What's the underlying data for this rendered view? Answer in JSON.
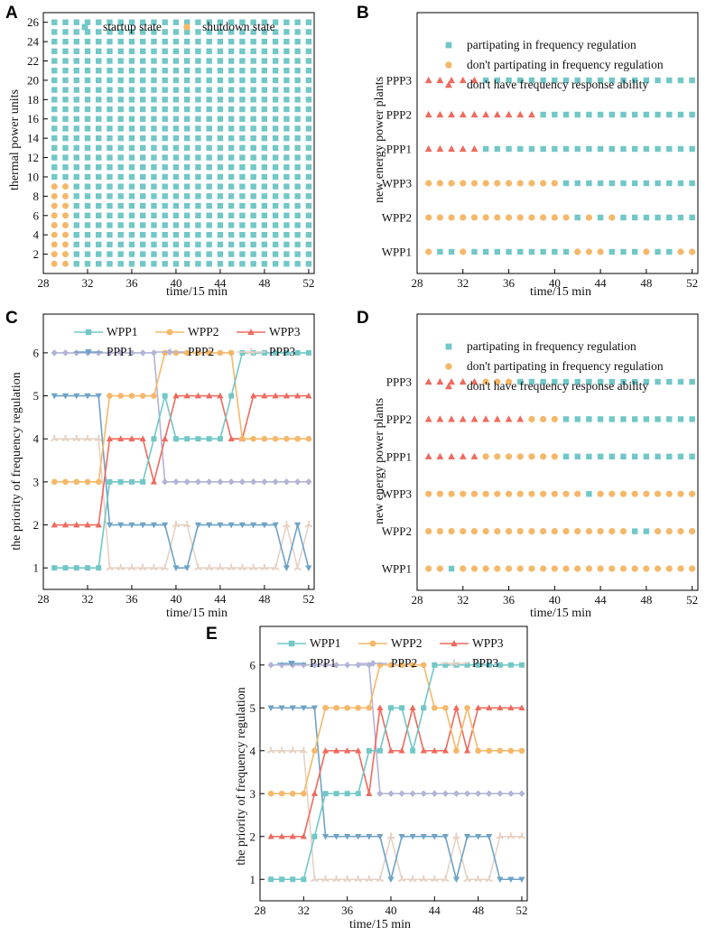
{
  "colors": {
    "teal": "#72C7C7",
    "orange": "#F5B86A",
    "red": "#EE6A5E",
    "blue": "#6FA3C7",
    "lavender": "#B4B2D6",
    "beige": "#E6D2C4"
  },
  "chart_data": [
    {
      "id": "A",
      "panel_label": "A",
      "type": "scatter",
      "xlabel": "time/15 min",
      "ylabel": "thermal power units",
      "xlim": [
        28,
        52.5
      ],
      "ylim": [
        0,
        27
      ],
      "xticks": [
        "28",
        "32",
        "36",
        "40",
        "44",
        "48",
        "52"
      ],
      "yticks": [
        "2",
        "4",
        "6",
        "8",
        "10",
        "12",
        "14",
        "16",
        "18",
        "20",
        "22",
        "24",
        "26"
      ],
      "legend": [
        "startup state",
        "shutdown state"
      ],
      "description": "units 1-26 all in startup state for time 29-52 except units 1-9 in shutdown state at time 29 and 30",
      "grid": {
        "x_start": 29,
        "x_end": 52,
        "units": 26,
        "shutdown_units_max": 9,
        "shutdown_times": [
          29,
          30
        ]
      }
    },
    {
      "id": "B",
      "panel_label": "B",
      "type": "scatter",
      "xlabel": "time/15 min",
      "ylabel": "new energy power plants",
      "xlim": [
        28,
        52.5
      ],
      "xticks": [
        "28",
        "32",
        "36",
        "40",
        "44",
        "48",
        "52"
      ],
      "categories": [
        "WPP1",
        "WPP2",
        "WPP3",
        "PPP1",
        "PPP2",
        "PPP3"
      ],
      "legend": [
        "partipating in frequency regulation",
        "don't partipating in frequency regulation",
        "don't have frequency response ability"
      ],
      "x_start": 29,
      "states": {
        "WPP1": "OSSOSSSSSSSSSOOOSSSOSSOO",
        "WPP2": "OOOOOOOOOOOOOSOSOSSSSSSS",
        "WPP3": "OOOOOOOOOOOOSSSSSSSSSSSS",
        "PPP1": "RRRRRSSSSSSSSSSSSSSSSSSS",
        "PPP2": "RRRRRRRRRRSSSSSSSSSSSSSS",
        "PPP3": "RRRRRSSSSSSSSSSSSSSSSSSS"
      }
    },
    {
      "id": "C",
      "panel_label": "C",
      "type": "line",
      "xlabel": "time/15 min",
      "ylabel": "the priority of frequency regulation",
      "xlim": [
        28,
        52.5
      ],
      "ylim": [
        0.5,
        6.9
      ],
      "xticks": [
        "28",
        "32",
        "36",
        "40",
        "44",
        "48",
        "52"
      ],
      "yticks": [
        "1",
        "2",
        "3",
        "4",
        "5",
        "6"
      ],
      "x": [
        29,
        30,
        31,
        32,
        33,
        34,
        35,
        36,
        37,
        38,
        39,
        40,
        41,
        42,
        43,
        44,
        45,
        46,
        47,
        48,
        49,
        50,
        51,
        52
      ],
      "series": [
        {
          "name": "WPP1",
          "values": [
            1,
            1,
            1,
            1,
            1,
            3,
            3,
            3,
            3,
            4,
            5,
            4,
            4,
            4,
            4,
            4,
            5,
            6,
            6,
            6,
            6,
            6,
            6,
            6
          ]
        },
        {
          "name": "WPP2",
          "values": [
            3,
            3,
            3,
            3,
            3,
            5,
            5,
            5,
            5,
            5,
            6,
            6,
            6,
            6,
            6,
            6,
            6,
            4,
            4,
            4,
            4,
            4,
            4,
            4
          ]
        },
        {
          "name": "WPP3",
          "values": [
            2,
            2,
            2,
            2,
            2,
            4,
            4,
            4,
            4,
            3,
            4,
            5,
            5,
            5,
            5,
            5,
            4,
            4,
            5,
            5,
            5,
            5,
            5,
            5
          ]
        },
        {
          "name": "PPP1",
          "values": [
            5,
            5,
            5,
            5,
            5,
            2,
            2,
            2,
            2,
            2,
            2,
            1,
            1,
            2,
            2,
            2,
            2,
            2,
            2,
            2,
            2,
            1,
            2,
            1
          ]
        },
        {
          "name": "PPP2",
          "values": [
            6,
            6,
            6,
            6,
            6,
            6,
            6,
            6,
            6,
            6,
            3,
            3,
            3,
            3,
            3,
            3,
            3,
            3,
            3,
            3,
            3,
            3,
            3,
            3
          ]
        },
        {
          "name": "PPP3",
          "values": [
            4,
            4,
            4,
            4,
            4,
            1,
            1,
            1,
            1,
            1,
            1,
            2,
            2,
            1,
            1,
            1,
            1,
            1,
            1,
            1,
            1,
            2,
            1,
            2
          ]
        }
      ]
    },
    {
      "id": "D",
      "panel_label": "D",
      "type": "scatter",
      "xlabel": "time/15 min",
      "ylabel": "new energy power plants",
      "xlim": [
        28,
        52.5
      ],
      "xticks": [
        "28",
        "32",
        "36",
        "40",
        "44",
        "48",
        "52"
      ],
      "categories": [
        "WPP1",
        "WPP2",
        "WPP3",
        "PPP1",
        "PPP2",
        "PPP3"
      ],
      "legend": [
        "partipating in frequency regulation",
        "don't partipating in frequency regulation",
        "don't have frequency response ability"
      ],
      "x_start": 29,
      "states": {
        "WPP1": "OOSOOOOOOOOOOOOOOOOOOOOO",
        "WPP2": "OOOOOOOOOOOOOOOOOOSSOOOO",
        "WPP3": "OOOOOOOOOOOOOOSOOOOOOOOO",
        "PPP1": "RRRRROOOOOOOSSSSSSSSSSSS",
        "PPP2": "RRRRRRRRROOOSSSSSSSSSSSS",
        "PPP3": "RRRRROOOSSSSSSSSSSSSSSSS"
      }
    },
    {
      "id": "E",
      "panel_label": "E",
      "type": "line",
      "xlabel": "time/15 min",
      "ylabel": "the priority of frequency regulation",
      "xlim": [
        28,
        52.5
      ],
      "ylim": [
        0.5,
        6.9
      ],
      "xticks": [
        "28",
        "32",
        "36",
        "40",
        "44",
        "48",
        "52"
      ],
      "yticks": [
        "1",
        "2",
        "3",
        "4",
        "5",
        "6"
      ],
      "x": [
        29,
        30,
        31,
        32,
        33,
        34,
        35,
        36,
        37,
        38,
        39,
        40,
        41,
        42,
        43,
        44,
        45,
        46,
        47,
        48,
        49,
        50,
        51,
        52
      ],
      "series": [
        {
          "name": "WPP1",
          "values": [
            1,
            1,
            1,
            1,
            2,
            3,
            3,
            3,
            3,
            4,
            4,
            5,
            5,
            4,
            5,
            6,
            6,
            6,
            6,
            6,
            6,
            6,
            6,
            6
          ]
        },
        {
          "name": "WPP2",
          "values": [
            3,
            3,
            3,
            3,
            4,
            5,
            5,
            5,
            5,
            5,
            6,
            6,
            6,
            6,
            6,
            5,
            5,
            4,
            5,
            4,
            4,
            4,
            4,
            4
          ]
        },
        {
          "name": "WPP3",
          "values": [
            2,
            2,
            2,
            2,
            3,
            4,
            4,
            4,
            4,
            3,
            5,
            4,
            4,
            5,
            4,
            4,
            4,
            5,
            4,
            5,
            5,
            5,
            5,
            5
          ]
        },
        {
          "name": "PPP1",
          "values": [
            5,
            5,
            5,
            5,
            5,
            2,
            2,
            2,
            2,
            2,
            2,
            1,
            2,
            2,
            2,
            2,
            2,
            1,
            2,
            2,
            2,
            1,
            1,
            1
          ]
        },
        {
          "name": "PPP2",
          "values": [
            6,
            6,
            6,
            6,
            6,
            6,
            6,
            6,
            6,
            6,
            3,
            3,
            3,
            3,
            3,
            3,
            3,
            3,
            3,
            3,
            3,
            3,
            3,
            3
          ]
        },
        {
          "name": "PPP3",
          "values": [
            4,
            4,
            4,
            4,
            1,
            1,
            1,
            1,
            1,
            1,
            1,
            2,
            1,
            1,
            1,
            1,
            1,
            2,
            1,
            1,
            1,
            2,
            2,
            2
          ]
        }
      ]
    }
  ]
}
